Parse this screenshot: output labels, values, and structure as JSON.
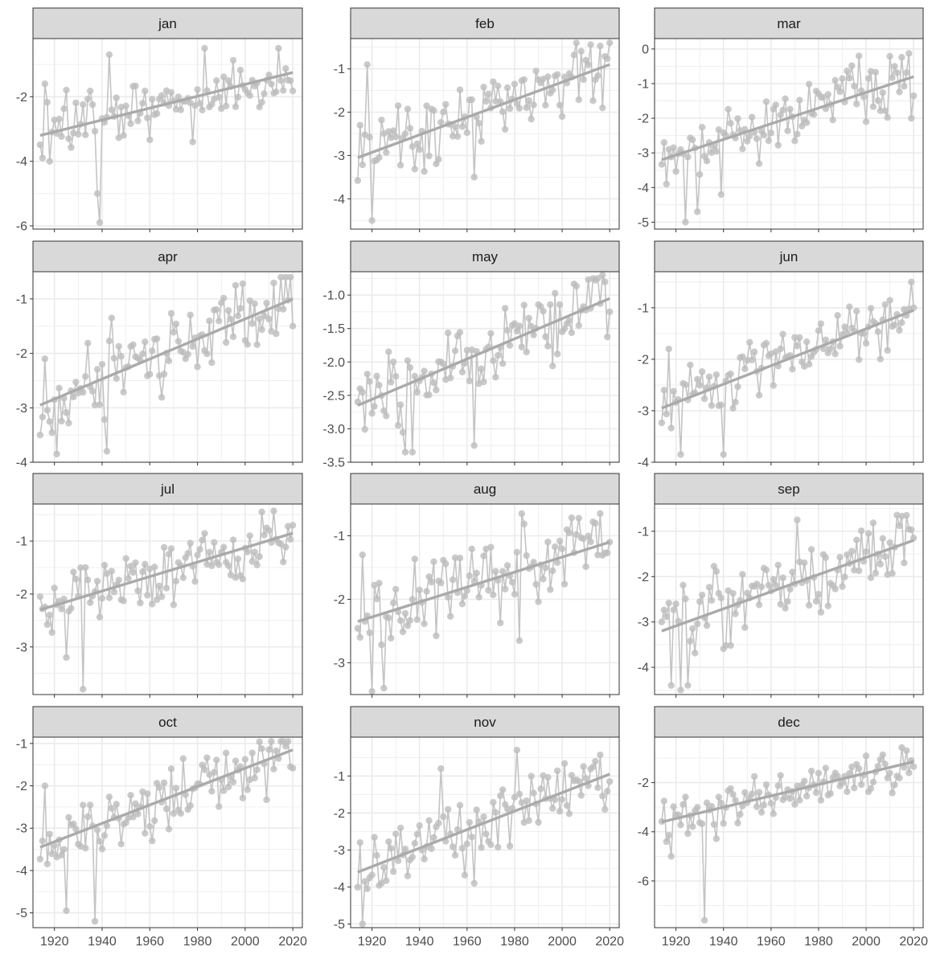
{
  "chart_data": {
    "type": "line",
    "layout": "facet-grid",
    "rows": 4,
    "cols": 3,
    "x_ticks": [
      1920,
      1940,
      1960,
      1980,
      2000,
      2020
    ],
    "xlim": [
      1911,
      2024
    ],
    "colors": {
      "points": "#bdbdbd",
      "line": "#c4c4c4",
      "trend": "#aaaaaa",
      "strip": "#d9d9d9",
      "grid": "#ebebeb",
      "border": "#333333"
    },
    "panels": [
      {
        "label": "jan",
        "ylim": [
          -6.1,
          -0.2
        ],
        "yticks": [
          {
            "v": -6,
            "t": "-6"
          },
          {
            "v": -4,
            "t": "-4"
          },
          {
            "v": -2,
            "t": "-2"
          }
        ],
        "trend": [
          -3.2,
          -1.25
        ],
        "seed": 11,
        "amp": 0.75,
        "anchors": [
          [
            1915,
            -3.9
          ],
          [
            1916,
            -1.6
          ],
          [
            1918,
            -4.0
          ],
          [
            1938,
            -5.0
          ],
          [
            1939,
            -5.9
          ],
          [
            1943,
            -0.7
          ],
          [
            1983,
            -0.5
          ],
          [
            1978,
            -3.4
          ],
          [
            2019,
            -1.5
          ]
        ]
      },
      {
        "label": "feb",
        "ylim": [
          -4.7,
          -0.3
        ],
        "yticks": [
          {
            "v": -4,
            "t": "-4"
          },
          {
            "v": -3,
            "t": "-3"
          },
          {
            "v": -2,
            "t": "-2"
          },
          {
            "v": -1,
            "t": "-1"
          }
        ],
        "trend": [
          -3.05,
          -0.9
        ],
        "seed": 23,
        "amp": 0.7,
        "anchors": [
          [
            1915,
            -2.3
          ],
          [
            1918,
            -0.9
          ],
          [
            1920,
            -4.5
          ],
          [
            1963,
            -3.5
          ],
          [
            2020,
            -0.4
          ],
          [
            2017,
            -1.9
          ]
        ]
      },
      {
        "label": "mar",
        "ylim": [
          -5.2,
          0.3
        ],
        "yticks": [
          {
            "v": -5,
            "t": "-5"
          },
          {
            "v": -4,
            "t": "-4"
          },
          {
            "v": -3,
            "t": "-3"
          },
          {
            "v": -2,
            "t": "-2"
          },
          {
            "v": -1,
            "t": "-1"
          },
          {
            "v": 0,
            "t": "0"
          }
        ],
        "trend": [
          -3.2,
          -0.8
        ],
        "seed": 37,
        "amp": 0.7,
        "anchors": [
          [
            1915,
            -2.7
          ],
          [
            1916,
            -3.9
          ],
          [
            1924,
            -5.0
          ],
          [
            1929,
            -4.7
          ],
          [
            1939,
            -4.2
          ],
          [
            1997,
            -0.2
          ],
          [
            2019,
            -2.0
          ]
        ]
      },
      {
        "label": "apr",
        "ylim": [
          -4.0,
          -0.5
        ],
        "yticks": [
          {
            "v": -4,
            "t": "-4"
          },
          {
            "v": -3,
            "t": "-3"
          },
          {
            "v": -2,
            "t": "-2"
          },
          {
            "v": -1,
            "t": "-1"
          }
        ],
        "trend": [
          -2.95,
          -1.0
        ],
        "seed": 41,
        "amp": 0.55,
        "anchors": [
          [
            1914,
            -3.5
          ],
          [
            1916,
            -2.1
          ],
          [
            1921,
            -3.85
          ],
          [
            1942,
            -3.8
          ],
          [
            1944,
            -1.35
          ],
          [
            1996,
            -0.75
          ],
          [
            2020,
            -1.5
          ]
        ]
      },
      {
        "label": "may",
        "ylim": [
          -3.5,
          -0.65
        ],
        "yticks": [
          {
            "v": -3.5,
            "t": "-3.5"
          },
          {
            "v": -3,
            "t": "-3.0"
          },
          {
            "v": -2.5,
            "t": "-2.5"
          },
          {
            "v": -2,
            "t": "-2.0"
          },
          {
            "v": -1.5,
            "t": "-1.5"
          },
          {
            "v": -1,
            "t": "-1.0"
          }
        ],
        "trend": [
          -2.65,
          -1.05
        ],
        "seed": 53,
        "amp": 0.45,
        "anchors": [
          [
            1915,
            -2.4
          ],
          [
            1934,
            -3.35
          ],
          [
            1937,
            -3.35
          ],
          [
            1963,
            -3.25
          ],
          [
            2017,
            -0.7
          ],
          [
            2020,
            -1.25
          ]
        ]
      },
      {
        "label": "jun",
        "ylim": [
          -4.0,
          -0.3
        ],
        "yticks": [
          {
            "v": -4,
            "t": "-4"
          },
          {
            "v": -3,
            "t": "-3"
          },
          {
            "v": -2,
            "t": "-2"
          },
          {
            "v": -1,
            "t": "-1"
          }
        ],
        "trend": [
          -2.95,
          -1.05
        ],
        "seed": 67,
        "amp": 0.55,
        "anchors": [
          [
            1915,
            -2.6
          ],
          [
            1917,
            -1.8
          ],
          [
            1922,
            -3.85
          ],
          [
            1940,
            -3.85
          ],
          [
            2019,
            -0.5
          ],
          [
            2020,
            -1.0
          ]
        ]
      },
      {
        "label": "jul",
        "ylim": [
          -3.9,
          -0.3
        ],
        "yticks": [
          {
            "v": -3,
            "t": "-3"
          },
          {
            "v": -2,
            "t": "-2"
          },
          {
            "v": -1,
            "t": "-1"
          }
        ],
        "trend": [
          -2.3,
          -0.85
        ],
        "seed": 71,
        "amp": 0.5,
        "anchors": [
          [
            1914,
            -2.05
          ],
          [
            1925,
            -3.2
          ],
          [
            1932,
            -3.8
          ],
          [
            2007,
            -0.45
          ],
          [
            2020,
            -0.7
          ]
        ]
      },
      {
        "label": "aug",
        "ylim": [
          -3.5,
          -0.5
        ],
        "yticks": [
          {
            "v": -3,
            "t": "-3"
          },
          {
            "v": -2,
            "t": "-2"
          },
          {
            "v": -1,
            "t": "-1"
          }
        ],
        "trend": [
          -2.35,
          -1.1
        ],
        "seed": 83,
        "amp": 0.5,
        "anchors": [
          [
            1915,
            -2.6
          ],
          [
            1916,
            -1.3
          ],
          [
            1920,
            -3.45
          ],
          [
            1925,
            -3.4
          ],
          [
            1982,
            -2.65
          ],
          [
            1983,
            -0.65
          ],
          [
            2016,
            -0.65
          ],
          [
            2020,
            -1.1
          ]
        ]
      },
      {
        "label": "sep",
        "ylim": [
          -4.6,
          -0.4
        ],
        "yticks": [
          {
            "v": -4,
            "t": "-4"
          },
          {
            "v": -3,
            "t": "-3"
          },
          {
            "v": -2,
            "t": "-2"
          },
          {
            "v": -1,
            "t": "-1"
          }
        ],
        "trend": [
          -3.2,
          -1.2
        ],
        "seed": 97,
        "amp": 0.7,
        "anchors": [
          [
            1914,
            -3.0
          ],
          [
            1918,
            -4.4
          ],
          [
            1922,
            -4.5
          ],
          [
            1925,
            -4.4
          ],
          [
            1971,
            -0.75
          ],
          [
            2017,
            -0.65
          ],
          [
            2020,
            -1.15
          ]
        ]
      },
      {
        "label": "oct",
        "ylim": [
          -5.35,
          -0.85
        ],
        "yticks": [
          {
            "v": -5,
            "t": "-5"
          },
          {
            "v": -4,
            "t": "-4"
          },
          {
            "v": -3,
            "t": "-3"
          },
          {
            "v": -2,
            "t": "-2"
          },
          {
            "v": -1,
            "t": "-1"
          }
        ],
        "trend": [
          -3.45,
          -1.15
        ],
        "seed": 103,
        "amp": 0.65,
        "anchors": [
          [
            1915,
            -3.3
          ],
          [
            1916,
            -2.0
          ],
          [
            1925,
            -4.95
          ],
          [
            1937,
            -5.2
          ],
          [
            2019,
            -1.55
          ]
        ]
      },
      {
        "label": "nov",
        "ylim": [
          -5.1,
          0.05
        ],
        "yticks": [
          {
            "v": -5,
            "t": "-5"
          },
          {
            "v": -4,
            "t": "-4"
          },
          {
            "v": -3,
            "t": "-3"
          },
          {
            "v": -2,
            "t": "-2"
          },
          {
            "v": -1,
            "t": "-1"
          }
        ],
        "trend": [
          -3.6,
          -0.95
        ],
        "seed": 113,
        "amp": 0.75,
        "anchors": [
          [
            1915,
            -2.8
          ],
          [
            1916,
            -5.0
          ],
          [
            1949,
            -0.8
          ],
          [
            1981,
            -0.3
          ],
          [
            1963,
            -3.9
          ],
          [
            2020,
            -1.15
          ]
        ]
      },
      {
        "label": "dec",
        "ylim": [
          -7.9,
          -0.15
        ],
        "yticks": [
          {
            "v": -6,
            "t": "-6"
          },
          {
            "v": -4,
            "t": "-4"
          },
          {
            "v": -2,
            "t": "-2"
          }
        ],
        "trend": [
          -3.6,
          -1.15
        ],
        "seed": 127,
        "amp": 0.8,
        "anchors": [
          [
            1915,
            -2.75
          ],
          [
            1916,
            -4.4
          ],
          [
            1918,
            -5.0
          ],
          [
            1932,
            -7.6
          ],
          [
            2017,
            -0.7
          ],
          [
            2020,
            -1.35
          ]
        ]
      }
    ]
  }
}
